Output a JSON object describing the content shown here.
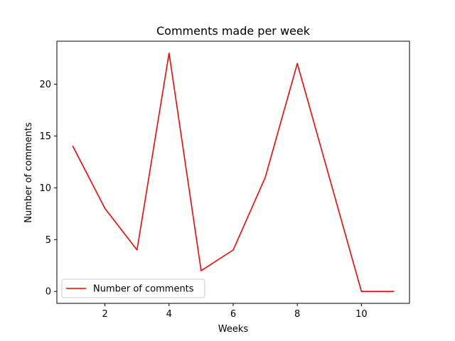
{
  "chart_data": {
    "type": "line",
    "title": "Comments made per week",
    "xlabel": "Weeks",
    "ylabel": "Number of comments",
    "x": [
      1,
      2,
      3,
      4,
      5,
      6,
      7,
      8,
      9,
      10,
      11
    ],
    "series": [
      {
        "name": "Number of comments",
        "color": "#ff0000",
        "values": [
          14,
          8,
          4,
          23,
          2,
          4,
          11,
          22,
          11,
          0,
          0
        ]
      }
    ],
    "xlim": [
      0.5,
      11.5
    ],
    "ylim": [
      -1.15,
      24.15
    ],
    "xticks": [
      2,
      4,
      6,
      8,
      10
    ],
    "yticks": [
      0,
      5,
      10,
      15,
      20
    ],
    "grid": false,
    "legend_position": "lower left"
  }
}
